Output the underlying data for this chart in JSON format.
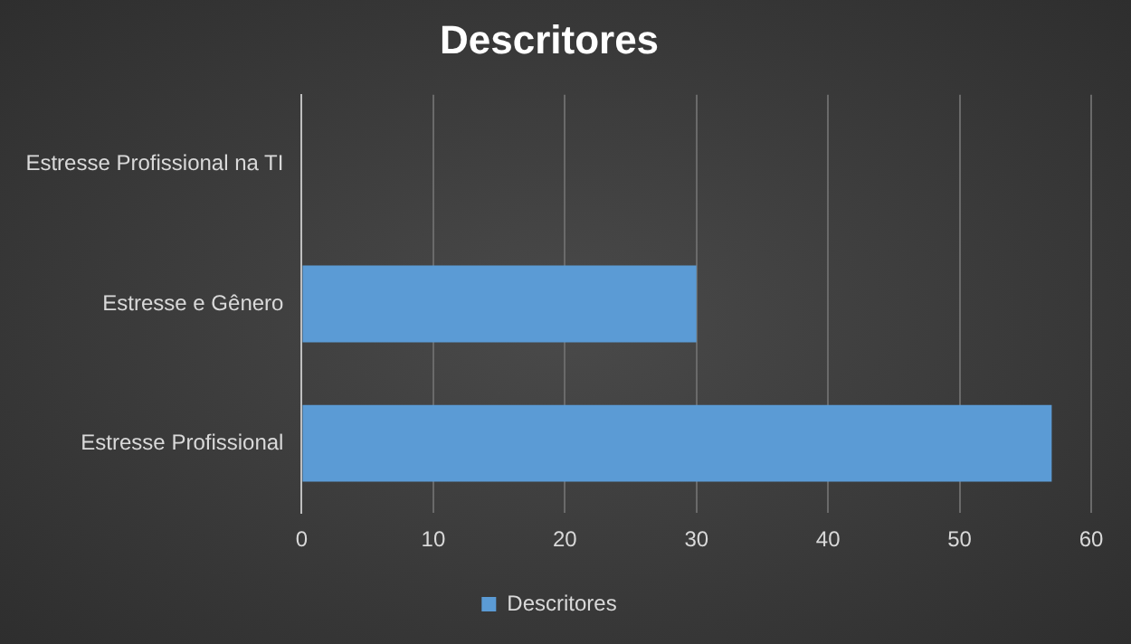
{
  "chart_data": {
    "type": "bar",
    "title": "Descritores",
    "orientation": "horizontal",
    "categories": [
      "Estresse Profissional na TI",
      "Estresse e Gênero",
      "Estresse Profissional"
    ],
    "series": [
      {
        "name": "Descritores",
        "color": "#5b9bd5",
        "values": [
          0,
          30,
          57
        ]
      }
    ],
    "xlim": [
      0,
      60
    ],
    "xticks": [
      0,
      10,
      20,
      30,
      40,
      50,
      60
    ],
    "grid": "x",
    "legend": "bottom"
  }
}
